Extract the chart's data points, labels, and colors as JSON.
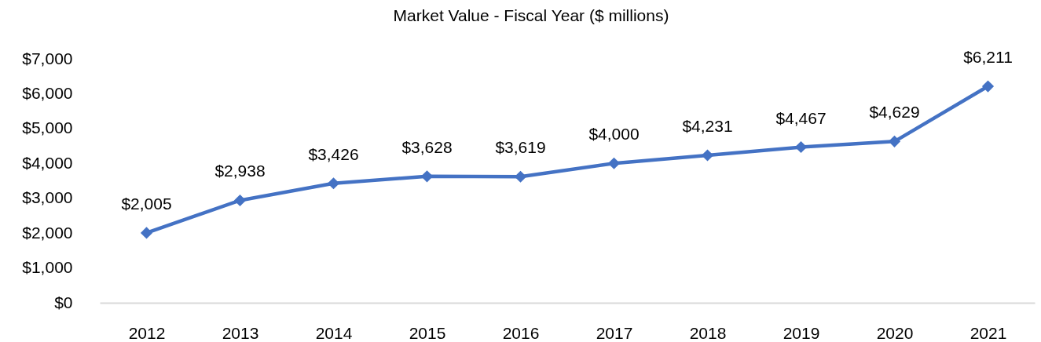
{
  "chart_data": {
    "type": "line",
    "title": "Market Value - Fiscal Year ($ millions)",
    "categories": [
      "2012",
      "2013",
      "2014",
      "2015",
      "2016",
      "2017",
      "2018",
      "2019",
      "2020",
      "2021"
    ],
    "values": [
      2005,
      2938,
      3426,
      3628,
      3619,
      4000,
      4231,
      4467,
      4629,
      6211
    ],
    "value_labels": [
      "$2,005",
      "$2,938",
      "$3,426",
      "$3,628",
      "$3,619",
      "$4,000",
      "$4,231",
      "$4,467",
      "$4,629",
      "$6,211"
    ],
    "color": "#4472c4",
    "ylim": [
      0,
      7000
    ],
    "yticks": [
      {
        "value": 0,
        "label": "$0"
      },
      {
        "value": 1000,
        "label": "$1,000"
      },
      {
        "value": 2000,
        "label": "$2,000"
      },
      {
        "value": 3000,
        "label": "$3,000"
      },
      {
        "value": 4000,
        "label": "$4,000"
      },
      {
        "value": 5000,
        "label": "$5,000"
      },
      {
        "value": 6000,
        "label": "$6,000"
      },
      {
        "value": 7000,
        "label": "$7,000"
      }
    ],
    "grid": false,
    "marker": "diamond",
    "line_style": "solid"
  }
}
